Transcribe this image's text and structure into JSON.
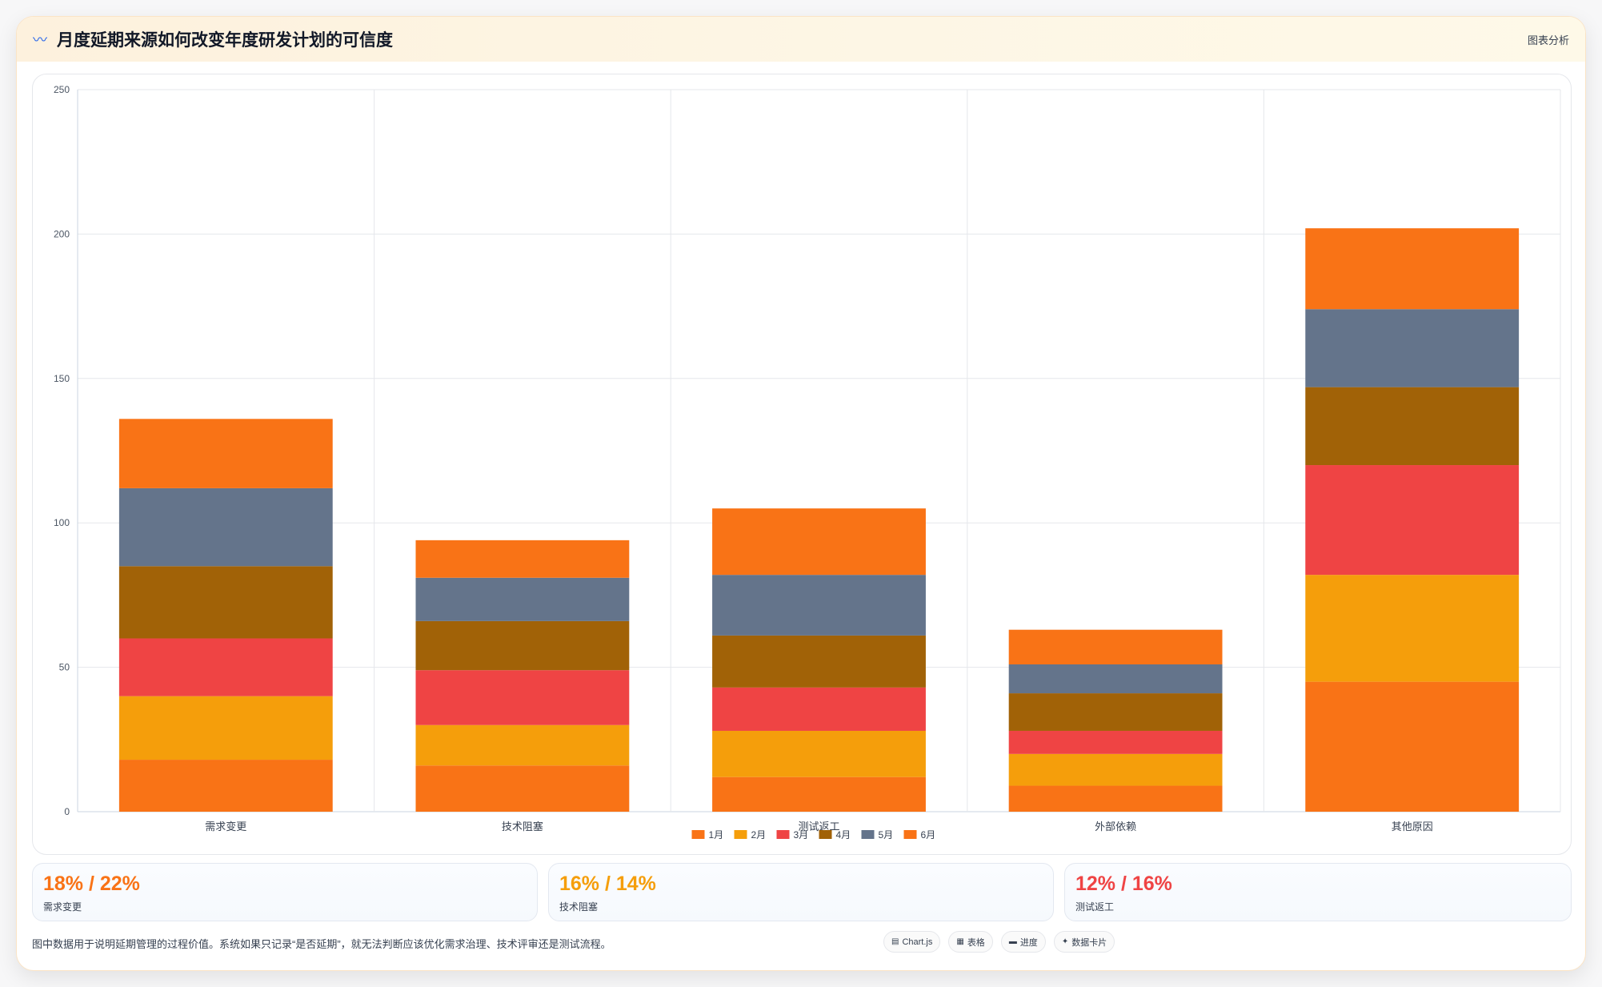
{
  "header": {
    "icon": "chart-line-icon",
    "title": "月度延期来源如何改变年度研发计划的可信度",
    "menu_label": "图表分析"
  },
  "chart_data": {
    "type": "bar",
    "stacked": true,
    "categories": [
      "需求变更",
      "技术阻塞",
      "测试返工",
      "外部依赖",
      "其他原因"
    ],
    "series": [
      {
        "name": "1月",
        "color": "#f97316",
        "values": [
          18,
          16,
          12,
          9,
          45
        ]
      },
      {
        "name": "2月",
        "color": "#f59e0b",
        "values": [
          22,
          14,
          16,
          11,
          37
        ]
      },
      {
        "name": "3月",
        "color": "#ef4444",
        "values": [
          20,
          19,
          15,
          8,
          38
        ]
      },
      {
        "name": "4月",
        "color": "#a16207",
        "values": [
          25,
          17,
          18,
          13,
          27
        ]
      },
      {
        "name": "5月",
        "color": "#64748b",
        "values": [
          27,
          15,
          21,
          10,
          27
        ]
      },
      {
        "name": "6月",
        "color": "#f97316",
        "values": [
          24,
          13,
          23,
          12,
          28
        ]
      }
    ],
    "ylim": [
      0,
      250
    ],
    "yticks": [
      0,
      50,
      100,
      150,
      200,
      250
    ],
    "grid": true,
    "legend": "bottom"
  },
  "stats": [
    {
      "value": "18% / 22%",
      "label": "需求变更",
      "color": "#f97316"
    },
    {
      "value": "16% / 14%",
      "label": "技术阻塞",
      "color": "#f59e0b"
    },
    {
      "value": "12% / 16%",
      "label": "测试返工",
      "color": "#ef4444"
    }
  ],
  "footer": {
    "note": "图中数据用于说明延期管理的过程价值。系统如果只记录“是否延期”，就无法判断应该优化需求治理、技术评审还是测试流程。"
  },
  "chips": [
    {
      "icon": "▤",
      "icon_name": "chart-icon",
      "label": "Chart.js"
    },
    {
      "icon": "▦",
      "icon_name": "table-icon",
      "label": "表格"
    },
    {
      "icon": "▬",
      "icon_name": "progress-icon",
      "label": "进度"
    },
    {
      "icon": "✦",
      "icon_name": "card-icon",
      "label": "数据卡片"
    }
  ]
}
